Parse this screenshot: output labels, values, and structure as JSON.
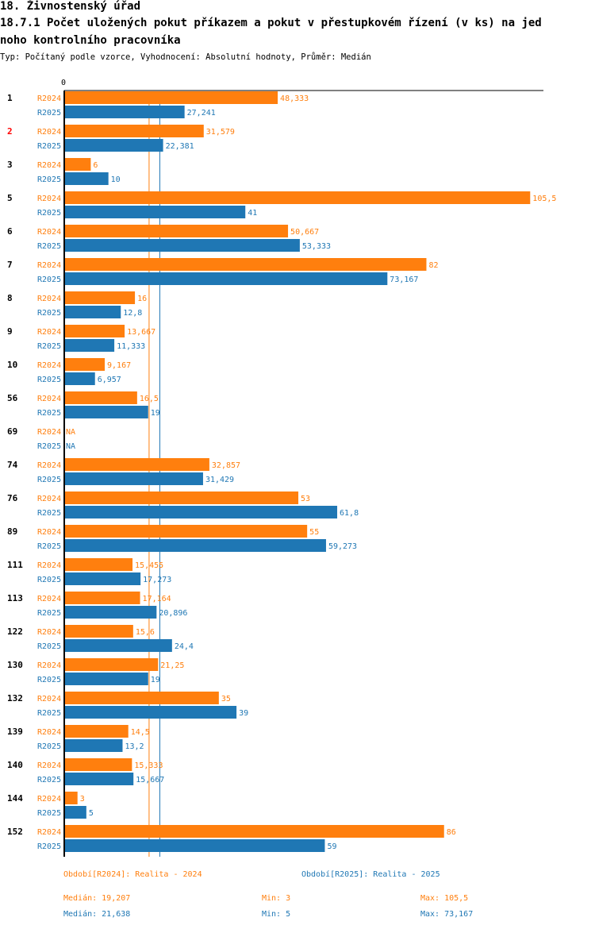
{
  "header": {
    "line1": "18. Živnostenský úřad",
    "line2": "18.7.1 Počet uložených pokut příkazem a pokut v přestupkovém řízení (v ks) na jed",
    "line3": "noho kontrolního pracovníka",
    "subtitle": "Typ: Počítaný podle vzorce, Vyhodnocení: Absolutní hodnoty, Průměr: Medián"
  },
  "colors": {
    "s1": "#ff7f0e",
    "s2": "#1f77b4",
    "highlight": "#ff0000"
  },
  "chart_data": {
    "type": "bar",
    "orientation": "horizontal",
    "axis_zero_label": "0",
    "xlim": [
      0,
      108.5
    ],
    "highlight_category": "2",
    "categories": [
      "1",
      "2",
      "3",
      "5",
      "6",
      "7",
      "8",
      "9",
      "10",
      "56",
      "69",
      "74",
      "76",
      "89",
      "111",
      "113",
      "122",
      "130",
      "132",
      "139",
      "140",
      "144",
      "152"
    ],
    "series": [
      {
        "name": "R2024",
        "values": [
          48.333,
          31.579,
          6,
          105.5,
          50.667,
          82,
          16,
          13.667,
          9.167,
          16.5,
          null,
          32.857,
          53,
          55,
          15.455,
          17.164,
          15.6,
          21.25,
          35,
          14.5,
          15.333,
          3,
          86
        ],
        "labels": [
          "48,333",
          "31,579",
          "6",
          "105,5",
          "50,667",
          "82",
          "16",
          "13,667",
          "9,167",
          "16,5",
          "NA",
          "32,857",
          "53",
          "55",
          "15,455",
          "17,164",
          "15,6",
          "21,25",
          "35",
          "14,5",
          "15,333",
          "3",
          "86"
        ]
      },
      {
        "name": "R2025",
        "values": [
          27.241,
          22.381,
          10,
          41,
          53.333,
          73.167,
          12.8,
          11.333,
          6.957,
          19,
          null,
          31.429,
          61.8,
          59.273,
          17.273,
          20.896,
          24.4,
          19,
          39,
          13.2,
          15.667,
          5,
          59
        ],
        "labels": [
          "27,241",
          "22,381",
          "10",
          "41",
          "53,333",
          "73,167",
          "12,8",
          "11,333",
          "6,957",
          "19",
          "NA",
          "31,429",
          "61,8",
          "59,273",
          "17,273",
          "20,896",
          "24,4",
          "19",
          "39",
          "13,2",
          "15,667",
          "5",
          "59"
        ]
      }
    ],
    "medians": [
      19.207,
      21.638
    ]
  },
  "footer": {
    "legend1": "Období[R2024]: Realita - 2024",
    "legend2": "Období[R2025]: Realita - 2025",
    "median1": "Medián: 19,207",
    "min1": "Min: 3",
    "max1": "Max: 105,5",
    "median2": "Medián: 21,638",
    "min2": "Min: 5",
    "max2": "Max: 73,167"
  }
}
